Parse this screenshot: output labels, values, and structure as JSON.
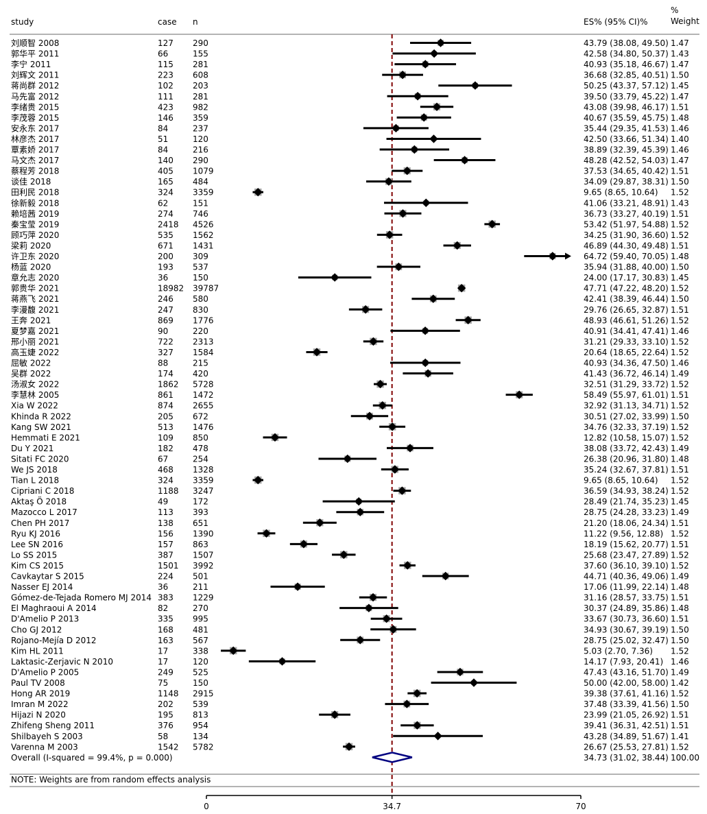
{
  "chart_data": {
    "type": "forest",
    "columns": {
      "study": "study",
      "case": "case",
      "n": "n",
      "es": "ES% (95% CI)%",
      "weight_line1": "%",
      "weight_line2": "Weight"
    },
    "rows": [
      {
        "study": "刘顺智 2008",
        "case": "127",
        "n": "290",
        "es": 43.79,
        "lo": 38.08,
        "hi": 49.5,
        "label": "43.79 (38.08, 49.50)",
        "weight": "1.47"
      },
      {
        "study": "郭华平 2011",
        "case": "66",
        "n": "155",
        "es": 42.58,
        "lo": 34.8,
        "hi": 50.37,
        "label": "42.58 (34.80, 50.37)",
        "weight": "1.43"
      },
      {
        "study": "李宁 2011",
        "case": "115",
        "n": "281",
        "es": 40.93,
        "lo": 35.18,
        "hi": 46.67,
        "label": "40.93 (35.18, 46.67)",
        "weight": "1.47"
      },
      {
        "study": "刘辉文 2011",
        "case": "223",
        "n": "608",
        "es": 36.68,
        "lo": 32.85,
        "hi": 40.51,
        "label": "36.68 (32.85, 40.51)",
        "weight": "1.50"
      },
      {
        "study": "蒋尚群 2012",
        "case": "102",
        "n": "203",
        "es": 50.25,
        "lo": 43.37,
        "hi": 57.12,
        "label": "50.25 (43.37, 57.12)",
        "weight": "1.45"
      },
      {
        "study": "马先富 2012",
        "case": "111",
        "n": "281",
        "es": 39.5,
        "lo": 33.79,
        "hi": 45.22,
        "label": "39.50 (33.79, 45.22)",
        "weight": "1.47"
      },
      {
        "study": "李绪贵 2015",
        "case": "423",
        "n": "982",
        "es": 43.08,
        "lo": 39.98,
        "hi": 46.17,
        "label": "43.08 (39.98, 46.17)",
        "weight": "1.51"
      },
      {
        "study": "李茂蓉 2015",
        "case": "146",
        "n": "359",
        "es": 40.67,
        "lo": 35.59,
        "hi": 45.75,
        "label": "40.67 (35.59, 45.75)",
        "weight": "1.48"
      },
      {
        "study": "安永东 2017",
        "case": "84",
        "n": "237",
        "es": 35.44,
        "lo": 29.35,
        "hi": 41.53,
        "label": "35.44 (29.35, 41.53)",
        "weight": "1.46"
      },
      {
        "study": "林彦杰 2017",
        "case": "51",
        "n": "120",
        "es": 42.5,
        "lo": 33.66,
        "hi": 51.34,
        "label": "42.50 (33.66, 51.34)",
        "weight": "1.40"
      },
      {
        "study": "覃素娇 2017",
        "case": "84",
        "n": "216",
        "es": 38.89,
        "lo": 32.39,
        "hi": 45.39,
        "label": "38.89 (32.39, 45.39)",
        "weight": "1.46"
      },
      {
        "study": "马文杰 2017",
        "case": "140",
        "n": "290",
        "es": 48.28,
        "lo": 42.52,
        "hi": 54.03,
        "label": "48.28 (42.52, 54.03)",
        "weight": "1.47"
      },
      {
        "study": "蔡程芳 2018",
        "case": "405",
        "n": "1079",
        "es": 37.53,
        "lo": 34.65,
        "hi": 40.42,
        "label": "37.53 (34.65, 40.42)",
        "weight": "1.51"
      },
      {
        "study": "谈佳 2018",
        "case": "165",
        "n": "484",
        "es": 34.09,
        "lo": 29.87,
        "hi": 38.31,
        "label": "34.09 (29.87, 38.31)",
        "weight": "1.50"
      },
      {
        "study": "田利民 2018",
        "case": "324",
        "n": "3359",
        "es": 9.65,
        "lo": 8.65,
        "hi": 10.64,
        "label": "9.65 (8.65, 10.64)",
        "weight": "1.52"
      },
      {
        "study": "徐新毅 2018",
        "case": "62",
        "n": "151",
        "es": 41.06,
        "lo": 33.21,
        "hi": 48.91,
        "label": "41.06 (33.21, 48.91)",
        "weight": "1.43"
      },
      {
        "study": "赖培茜 2019",
        "case": "274",
        "n": "746",
        "es": 36.73,
        "lo": 33.27,
        "hi": 40.19,
        "label": "36.73 (33.27, 40.19)",
        "weight": "1.51"
      },
      {
        "study": "秦宝莹 2019",
        "case": "2418",
        "n": "4526",
        "es": 53.42,
        "lo": 51.97,
        "hi": 54.88,
        "label": "53.42 (51.97, 54.88)",
        "weight": "1.52"
      },
      {
        "study": "顾巧萍 2020",
        "case": "535",
        "n": "1562",
        "es": 34.25,
        "lo": 31.9,
        "hi": 36.6,
        "label": "34.25 (31.90, 36.60)",
        "weight": "1.52"
      },
      {
        "study": "梁莉 2020",
        "case": "671",
        "n": "1431",
        "es": 46.89,
        "lo": 44.3,
        "hi": 49.48,
        "label": "46.89 (44.30, 49.48)",
        "weight": "1.51"
      },
      {
        "study": "许卫东 2020",
        "case": "200",
        "n": "309",
        "es": 64.72,
        "lo": 59.4,
        "hi": 70.05,
        "label": "64.72 (59.40, 70.05)",
        "weight": "1.48",
        "arrow": true
      },
      {
        "study": "杨蓝 2020",
        "case": "193",
        "n": "537",
        "es": 35.94,
        "lo": 31.88,
        "hi": 40.0,
        "label": "35.94 (31.88, 40.00)",
        "weight": "1.50"
      },
      {
        "study": "章允志 2020",
        "case": "36",
        "n": "150",
        "es": 24.0,
        "lo": 17.17,
        "hi": 30.83,
        "label": "24.00 (17.17, 30.83)",
        "weight": "1.45"
      },
      {
        "study": "郭贵华 2021",
        "case": "18982",
        "n": "39787",
        "es": 47.71,
        "lo": 47.22,
        "hi": 48.2,
        "label": "47.71 (47.22, 48.20)",
        "weight": "1.52"
      },
      {
        "study": "蒋燕飞 2021",
        "case": "246",
        "n": "580",
        "es": 42.41,
        "lo": 38.39,
        "hi": 46.44,
        "label": "42.41 (38.39, 46.44)",
        "weight": "1.50"
      },
      {
        "study": "李漫馥 2021",
        "case": "247",
        "n": "830",
        "es": 29.76,
        "lo": 26.65,
        "hi": 32.87,
        "label": "29.76 (26.65, 32.87)",
        "weight": "1.51"
      },
      {
        "study": "王奔 2021",
        "case": "869",
        "n": "1776",
        "es": 48.93,
        "lo": 46.61,
        "hi": 51.26,
        "label": "48.93 (46.61, 51.26)",
        "weight": "1.52"
      },
      {
        "study": "夏梦嘉 2021",
        "case": "90",
        "n": "220",
        "es": 40.91,
        "lo": 34.41,
        "hi": 47.41,
        "label": "40.91 (34.41, 47.41)",
        "weight": "1.46"
      },
      {
        "study": "邢小丽 2021",
        "case": "722",
        "n": "2313",
        "es": 31.21,
        "lo": 29.33,
        "hi": 33.1,
        "label": "31.21 (29.33, 33.10)",
        "weight": "1.52"
      },
      {
        "study": "高玉婕 2022",
        "case": "327",
        "n": "1584",
        "es": 20.64,
        "lo": 18.65,
        "hi": 22.64,
        "label": "20.64 (18.65, 22.64)",
        "weight": "1.52"
      },
      {
        "study": "屈敏 2022",
        "case": "88",
        "n": "215",
        "es": 40.93,
        "lo": 34.36,
        "hi": 47.5,
        "label": "40.93 (34.36, 47.50)",
        "weight": "1.46"
      },
      {
        "study": "吴群 2022",
        "case": "174",
        "n": "420",
        "es": 41.43,
        "lo": 36.72,
        "hi": 46.14,
        "label": "41.43 (36.72, 46.14)",
        "weight": "1.49"
      },
      {
        "study": "汤淑女 2022",
        "case": "1862",
        "n": "5728",
        "es": 32.51,
        "lo": 31.29,
        "hi": 33.72,
        "label": "32.51 (31.29, 33.72)",
        "weight": "1.52"
      },
      {
        "study": "李慧林 2005",
        "case": "861",
        "n": "1472",
        "es": 58.49,
        "lo": 55.97,
        "hi": 61.01,
        "label": "58.49 (55.97, 61.01)",
        "weight": "1.51"
      },
      {
        "study": "Xia W 2022",
        "case": "874",
        "n": "2655",
        "es": 32.92,
        "lo": 31.13,
        "hi": 34.71,
        "label": "32.92 (31.13, 34.71)",
        "weight": "1.52"
      },
      {
        "study": "Khinda R 2022",
        "case": "205",
        "n": "672",
        "es": 30.51,
        "lo": 27.02,
        "hi": 33.99,
        "label": "30.51 (27.02, 33.99)",
        "weight": "1.50"
      },
      {
        "study": "Kang SW 2021",
        "case": "513",
        "n": "1476",
        "es": 34.76,
        "lo": 32.33,
        "hi": 37.19,
        "label": "34.76 (32.33, 37.19)",
        "weight": "1.52"
      },
      {
        "study": "Hemmati E 2021",
        "case": "109",
        "n": "850",
        "es": 12.82,
        "lo": 10.58,
        "hi": 15.07,
        "label": "12.82 (10.58, 15.07)",
        "weight": "1.52"
      },
      {
        "study": "Du Y 2021",
        "case": "182",
        "n": "478",
        "es": 38.08,
        "lo": 33.72,
        "hi": 42.43,
        "label": "38.08 (33.72, 42.43)",
        "weight": "1.49"
      },
      {
        "study": "Sitati FC 2020",
        "case": "67",
        "n": "254",
        "es": 26.38,
        "lo": 20.96,
        "hi": 31.8,
        "label": "26.38 (20.96, 31.80)",
        "weight": "1.48"
      },
      {
        "study": "We JS 2018",
        "case": "468",
        "n": "1328",
        "es": 35.24,
        "lo": 32.67,
        "hi": 37.81,
        "label": "35.24 (32.67, 37.81)",
        "weight": "1.51"
      },
      {
        "study": "Tian L 2018",
        "case": "324",
        "n": "3359",
        "es": 9.65,
        "lo": 8.65,
        "hi": 10.64,
        "label": "9.65 (8.65, 10.64)",
        "weight": "1.52"
      },
      {
        "study": "Cipriani C 2018",
        "case": "1188",
        "n": "3247",
        "es": 36.59,
        "lo": 34.93,
        "hi": 38.24,
        "label": "36.59 (34.93, 38.24)",
        "weight": "1.52"
      },
      {
        "study": "Aktaş Ö 2018",
        "case": "49",
        "n": "172",
        "es": 28.49,
        "lo": 21.74,
        "hi": 35.23,
        "label": "28.49 (21.74, 35.23)",
        "weight": "1.45"
      },
      {
        "study": "Mazocco L 2017",
        "case": "113",
        "n": "393",
        "es": 28.75,
        "lo": 24.28,
        "hi": 33.23,
        "label": "28.75 (24.28, 33.23)",
        "weight": "1.49"
      },
      {
        "study": "Chen PH 2017",
        "case": "138",
        "n": "651",
        "es": 21.2,
        "lo": 18.06,
        "hi": 24.34,
        "label": "21.20 (18.06, 24.34)",
        "weight": "1.51"
      },
      {
        "study": "Ryu KJ 2016",
        "case": "156",
        "n": "1390",
        "es": 11.22,
        "lo": 9.56,
        "hi": 12.88,
        "label": "11.22 (9.56, 12.88)",
        "weight": "1.52"
      },
      {
        "study": "Lee SN 2016",
        "case": "157",
        "n": "863",
        "es": 18.19,
        "lo": 15.62,
        "hi": 20.77,
        "label": "18.19 (15.62, 20.77)",
        "weight": "1.51"
      },
      {
        "study": "Lo SS 2015",
        "case": "387",
        "n": "1507",
        "es": 25.68,
        "lo": 23.47,
        "hi": 27.89,
        "label": "25.68 (23.47, 27.89)",
        "weight": "1.52"
      },
      {
        "study": "Kim CS 2015",
        "case": "1501",
        "n": "3992",
        "es": 37.6,
        "lo": 36.1,
        "hi": 39.1,
        "label": "37.60 (36.10, 39.10)",
        "weight": "1.52"
      },
      {
        "study": "Cavkaytar S 2015",
        "case": "224",
        "n": "501",
        "es": 44.71,
        "lo": 40.36,
        "hi": 49.06,
        "label": "44.71 (40.36, 49.06)",
        "weight": "1.49"
      },
      {
        "study": "Nasser EJ 2014",
        "case": "36",
        "n": "211",
        "es": 17.06,
        "lo": 11.99,
        "hi": 22.14,
        "label": "17.06 (11.99, 22.14)",
        "weight": "1.48"
      },
      {
        "study": "Gómez-de-Tejada Romero MJ 2014",
        "case": "383",
        "n": "1229",
        "es": 31.16,
        "lo": 28.57,
        "hi": 33.75,
        "label": "31.16 (28.57, 33.75)",
        "weight": "1.51"
      },
      {
        "study": "El Maghraoui A 2014",
        "case": "82",
        "n": "270",
        "es": 30.37,
        "lo": 24.89,
        "hi": 35.86,
        "label": "30.37 (24.89, 35.86)",
        "weight": "1.48"
      },
      {
        "study": "D'Amelio P 2013",
        "case": "335",
        "n": "995",
        "es": 33.67,
        "lo": 30.73,
        "hi": 36.6,
        "label": "33.67 (30.73, 36.60)",
        "weight": "1.51"
      },
      {
        "study": "Cho GJ 2012",
        "case": "168",
        "n": "481",
        "es": 34.93,
        "lo": 30.67,
        "hi": 39.19,
        "label": "34.93 (30.67, 39.19)",
        "weight": "1.50"
      },
      {
        "study": "Rojano-Mejía D 2012",
        "case": "163",
        "n": "567",
        "es": 28.75,
        "lo": 25.02,
        "hi": 32.47,
        "label": "28.75 (25.02, 32.47)",
        "weight": "1.50"
      },
      {
        "study": "Kim HL 2011",
        "case": "17",
        "n": "338",
        "es": 5.03,
        "lo": 2.7,
        "hi": 7.36,
        "label": "5.03 (2.70, 7.36)",
        "weight": "1.52"
      },
      {
        "study": "Laktasic-Zerjavic N 2010",
        "case": "17",
        "n": "120",
        "es": 14.17,
        "lo": 7.93,
        "hi": 20.41,
        "label": "14.17 (7.93, 20.41)",
        "weight": "1.46"
      },
      {
        "study": "D'Amelio P 2005",
        "case": "249",
        "n": "525",
        "es": 47.43,
        "lo": 43.16,
        "hi": 51.7,
        "label": "47.43 (43.16, 51.70)",
        "weight": "1.49"
      },
      {
        "study": "Paul TV 2008",
        "case": "75",
        "n": "150",
        "es": 50.0,
        "lo": 42.0,
        "hi": 58.0,
        "label": "50.00 (42.00, 58.00)",
        "weight": "1.42"
      },
      {
        "study": "Hong AR 2019",
        "case": "1148",
        "n": "2915",
        "es": 39.38,
        "lo": 37.61,
        "hi": 41.16,
        "label": "39.38 (37.61, 41.16)",
        "weight": "1.52"
      },
      {
        "study": "Imran M 2022",
        "case": "202",
        "n": "539",
        "es": 37.48,
        "lo": 33.39,
        "hi": 41.56,
        "label": "37.48 (33.39, 41.56)",
        "weight": "1.50"
      },
      {
        "study": "Hijazi N 2020",
        "case": "195",
        "n": "813",
        "es": 23.99,
        "lo": 21.05,
        "hi": 26.92,
        "label": "23.99 (21.05, 26.92)",
        "weight": "1.51"
      },
      {
        "study": "Zhifeng Sheng 2011",
        "case": "376",
        "n": "954",
        "es": 39.41,
        "lo": 36.31,
        "hi": 42.51,
        "label": "39.41 (36.31, 42.51)",
        "weight": "1.51"
      },
      {
        "study": "Shilbayeh S 2003",
        "case": "58",
        "n": "134",
        "es": 43.28,
        "lo": 34.89,
        "hi": 51.67,
        "label": "43.28 (34.89, 51.67)",
        "weight": "1.41"
      },
      {
        "study": "Varenna M 2003",
        "case": "1542",
        "n": "5782",
        "es": 26.67,
        "lo": 25.53,
        "hi": 27.81,
        "label": "26.67 (25.53, 27.81)",
        "weight": "1.52"
      }
    ],
    "overall": {
      "study": "Overall  (I-squared = 99.4%, p = 0.000)",
      "es": 34.73,
      "lo": 31.02,
      "hi": 38.44,
      "label": "34.73 (31.02, 38.44)",
      "weight": "100.00"
    },
    "note": "NOTE: Weights are from random effects analysis",
    "x_ticks": [
      {
        "value": 0,
        "label": "0"
      },
      {
        "value": 34.7,
        "label": "34.7"
      },
      {
        "value": 70,
        "label": "70"
      }
    ],
    "reference_value": 34.7,
    "xlim": [
      0,
      70
    ],
    "colors": {
      "marker": "#000000",
      "weight_box": "#a6a6a6",
      "ref_line": "#800000",
      "diamond": "#000080"
    }
  }
}
